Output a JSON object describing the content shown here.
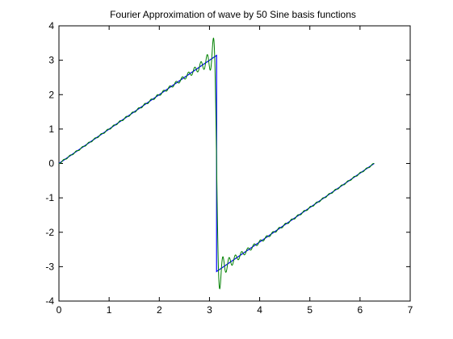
{
  "chart_data": {
    "type": "line",
    "title": "Fourier Approximation of wave by 50 Sine basis functions",
    "xlabel": "",
    "ylabel": "",
    "xlim": [
      0,
      7
    ],
    "ylim": [
      -4,
      4
    ],
    "x_ticks": [
      0,
      1,
      2,
      3,
      4,
      5,
      6,
      7
    ],
    "y_ticks": [
      4,
      3,
      2,
      1,
      0,
      -1,
      -2,
      -3,
      -4
    ],
    "x_tick_labels": [
      "0",
      "1",
      "2",
      "3",
      "4",
      "5",
      "6",
      "7"
    ],
    "y_tick_labels": [
      "4",
      "3",
      "2",
      "1",
      "0",
      "-1",
      "-2",
      "-3",
      "-4"
    ],
    "grid": false,
    "legend": "none",
    "series": [
      {
        "color": "#0000ff",
        "description": "sampled wave with unit slope, jump at pi",
        "x": [
          0,
          3.14159,
          3.14159,
          6.28318
        ],
        "values": [
          0,
          3.14159,
          -3.14159,
          0
        ]
      },
      {
        "color": "#008000",
        "description": "Fourier approximation using 50 sine terms",
        "x_range": [
          0,
          6.28318
        ],
        "sample_count": 1600,
        "terms": 50
      }
    ]
  }
}
